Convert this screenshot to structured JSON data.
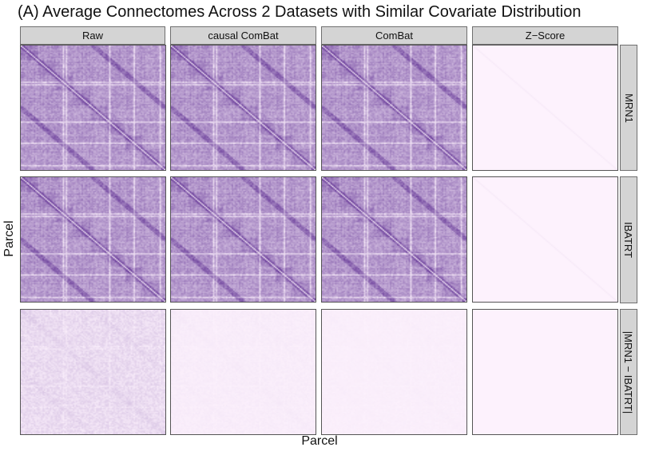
{
  "chart_data": {
    "type": "heatmap",
    "title": "(A) Average Connectomes Across 2 Datasets with Similar Covariate Distribution",
    "xlabel": "Parcel",
    "ylabel": "Parcel",
    "columns": [
      "Raw",
      "causal ComBat",
      "ComBat",
      "Z−Score"
    ],
    "rows": [
      "MRN1",
      "IBATRT",
      "|MRN1 − IBATRT|"
    ],
    "color_low": "#fdf2fd",
    "color_high": "#6a3d9a",
    "panel_intensity": [
      [
        1.0,
        1.0,
        1.0,
        0.0
      ],
      [
        1.0,
        1.0,
        1.0,
        0.0
      ],
      [
        0.35,
        0.08,
        0.05,
        0.0
      ]
    ]
  }
}
